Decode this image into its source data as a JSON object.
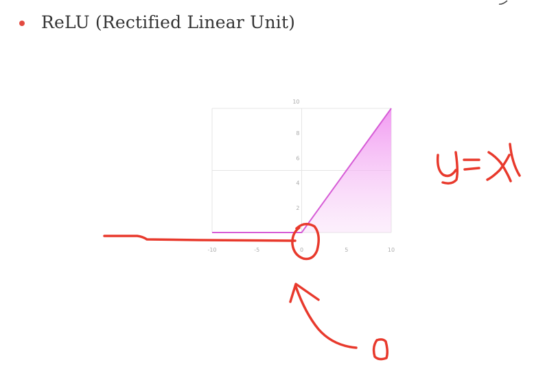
{
  "slide": {
    "bullet_text": "ReLU (Rectified Linear Unit)",
    "annotation_formula": "y=x",
    "annotation_zero": "0"
  },
  "colors": {
    "bullet": "#e24a3f",
    "curve": "#d65cd6",
    "fill": "#f3a9f3",
    "grid": "#e4e4e4",
    "ink": "#e8392c"
  },
  "chart_data": {
    "type": "area",
    "title": "",
    "xlabel": "",
    "ylabel": "",
    "xlim": [
      -10,
      10
    ],
    "ylim": [
      0,
      10
    ],
    "grid": true,
    "x_ticks": [
      -10,
      -5,
      0,
      5,
      10
    ],
    "y_ticks": [
      2,
      4,
      6,
      8,
      10
    ],
    "series": [
      {
        "x": [
          -10,
          -5,
          0,
          5,
          10
        ],
        "y": [
          0,
          0,
          0,
          5,
          10
        ]
      }
    ]
  }
}
